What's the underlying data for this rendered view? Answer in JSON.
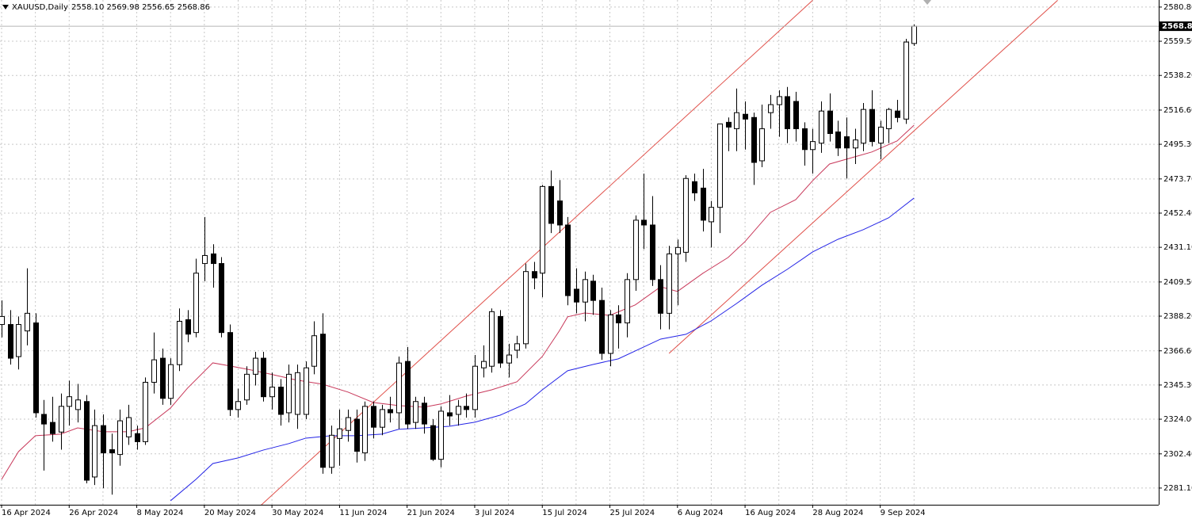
{
  "chart_data": {
    "type": "candlestick",
    "symbol": "XAUUSD,Daily",
    "ohlc_label": "2558.10 2569.98 2556.65 2568.86",
    "categories": [
      "16 Apr 2024",
      null,
      null,
      null,
      null,
      null,
      null,
      null,
      "26 Apr 2024",
      null,
      null,
      null,
      null,
      null,
      null,
      null,
      "8 May 2024",
      null,
      null,
      null,
      null,
      null,
      null,
      null,
      "20 May 2024",
      null,
      null,
      null,
      null,
      null,
      null,
      null,
      "30 May 2024",
      null,
      null,
      null,
      null,
      null,
      null,
      null,
      "11 Jun 2024",
      null,
      null,
      null,
      null,
      null,
      null,
      null,
      "21 Jun 2024",
      null,
      null,
      null,
      null,
      null,
      null,
      null,
      "3 Jul 2024",
      null,
      null,
      null,
      null,
      null,
      null,
      null,
      "15 Jul 2024",
      null,
      null,
      null,
      null,
      null,
      null,
      null,
      "25 Jul 2024",
      null,
      null,
      null,
      null,
      null,
      null,
      null,
      "6 Aug 2024",
      null,
      null,
      null,
      null,
      null,
      null,
      null,
      "16 Aug 2024",
      null,
      null,
      null,
      null,
      null,
      null,
      null,
      "28 Aug 2024",
      null,
      null,
      null,
      null,
      null,
      null,
      null,
      "9 Sep 2024",
      null,
      null,
      null,
      null
    ],
    "open": [
      2383,
      2383,
      2363,
      2379,
      2384,
      2327,
      2322,
      2316,
      2332,
      2330,
      2335,
      2288,
      2320,
      2305,
      2302,
      2313,
      2315,
      2310,
      2347,
      2362,
      2337,
      2358,
      2386,
      2378,
      2421,
      2427,
      2421,
      2378,
      2330,
      2336,
      2352,
      2362,
      2338,
      2344,
      2328,
      2327,
      2327,
      2357,
      2377,
      2294,
      2312,
      2317,
      2324,
      2303,
      2332,
      2319,
      2330,
      2328,
      2360,
      2322,
      2334,
      2320,
      2299,
      2328,
      2327,
      2332,
      2330,
      2356,
      2357,
      2388,
      2359,
      2367,
      2371,
      2416,
      2415,
      2469,
      2460,
      2445,
      2405,
      2397,
      2410,
      2398,
      2365,
      2389,
      2384,
      2411,
      2448,
      2445,
      2411,
      2390,
      2427,
      2428,
      2472,
      2468,
      2447,
      2456,
      2509,
      2505,
      2514,
      2512,
      2485,
      2515,
      2520,
      2525,
      2522,
      2505,
      2492,
      2496,
      2516,
      2503,
      2500,
      2493,
      2496,
      2517,
      2496,
      2505,
      2516,
      2511,
      2558.1
    ],
    "high": [
      2398,
      2392,
      2388,
      2418,
      2390,
      2336,
      2338,
      2340,
      2348,
      2346,
      2339,
      2330,
      2327,
      2315,
      2330,
      2333,
      2320,
      2350,
      2378,
      2368,
      2362,
      2393,
      2392,
      2424,
      2450,
      2433,
      2425,
      2383,
      2343,
      2357,
      2366,
      2366,
      2353,
      2349,
      2358,
      2358,
      2360,
      2385,
      2390,
      2320,
      2330,
      2330,
      2330,
      2335,
      2335,
      2333,
      2338,
      2363,
      2369,
      2338,
      2338,
      2324,
      2332,
      2339,
      2336,
      2340,
      2364,
      2370,
      2393,
      2392,
      2371,
      2376,
      2421,
      2422,
      2470,
      2479,
      2473,
      2450,
      2418,
      2416,
      2414,
      2406,
      2392,
      2395,
      2415,
      2451,
      2477,
      2463,
      2420,
      2432,
      2436,
      2476,
      2477,
      2480,
      2460,
      2508,
      2512,
      2530,
      2522,
      2515,
      2520,
      2526,
      2529,
      2531,
      2528,
      2509,
      2505,
      2522,
      2527,
      2510,
      2512,
      2505,
      2521,
      2529,
      2510,
      2518,
      2523,
      2561,
      2569.98
    ],
    "low": [
      2375,
      2358,
      2355,
      2370,
      2325,
      2292,
      2310,
      2305,
      2320,
      2322,
      2284,
      2283,
      2281,
      2277,
      2295,
      2308,
      2305,
      2308,
      2340,
      2333,
      2333,
      2354,
      2372,
      2375,
      2410,
      2406,
      2375,
      2326,
      2325,
      2333,
      2345,
      2335,
      2330,
      2320,
      2322,
      2318,
      2324,
      2352,
      2290,
      2290,
      2295,
      2310,
      2297,
      2298,
      2312,
      2314,
      2322,
      2318,
      2318,
      2318,
      2315,
      2298,
      2294,
      2320,
      2320,
      2325,
      2325,
      2350,
      2353,
      2356,
      2350,
      2362,
      2368,
      2405,
      2400,
      2440,
      2440,
      2395,
      2390,
      2385,
      2389,
      2361,
      2357,
      2368,
      2375,
      2404,
      2430,
      2407,
      2380,
      2380,
      2395,
      2422,
      2460,
      2441,
      2431,
      2440,
      2491,
      2491,
      2492,
      2470,
      2481,
      2505,
      2500,
      2496,
      2497,
      2482,
      2477,
      2490,
      2497,
      2488,
      2474,
      2483,
      2491,
      2494,
      2486,
      2496,
      2509,
      2508,
      2556.65
    ],
    "close": [
      2388,
      2362,
      2383,
      2390,
      2328,
      2321,
      2315,
      2332,
      2338,
      2336,
      2286,
      2320,
      2303,
      2303,
      2323,
      2325,
      2310,
      2347,
      2361,
      2337,
      2358,
      2385,
      2377,
      2415,
      2426,
      2421,
      2378,
      2330,
      2335,
      2352,
      2362,
      2338,
      2344,
      2327,
      2352,
      2353,
      2356,
      2376,
      2294,
      2314,
      2318,
      2325,
      2304,
      2332,
      2319,
      2330,
      2328,
      2359,
      2321,
      2335,
      2321,
      2299,
      2329,
      2326,
      2332,
      2330,
      2357,
      2360,
      2391,
      2359,
      2364,
      2371,
      2416,
      2412,
      2469,
      2446,
      2445,
      2401,
      2397,
      2411,
      2398,
      2365,
      2389,
      2384,
      2411,
      2448,
      2445,
      2411,
      2390,
      2427,
      2431,
      2474,
      2465,
      2448,
      2456,
      2508,
      2506,
      2515,
      2511,
      2484,
      2505,
      2520,
      2525,
      2505,
      2505,
      2492,
      2497,
      2516,
      2502,
      2493,
      2493,
      2498,
      2517,
      2497,
      2506,
      2517,
      2512,
      2559,
      2568.86
    ],
    "up_color": "#ffffff",
    "down_color": "#000000",
    "lines": [
      {
        "color": "#c8385a",
        "x": [
          0,
          2,
          4,
          7,
          9,
          12,
          15,
          17,
          20,
          22,
          25,
          27,
          30,
          33,
          35,
          38,
          41,
          44,
          47,
          50,
          52,
          55,
          58,
          61,
          64,
          66,
          67,
          69,
          72,
          75,
          78,
          80,
          83,
          86,
          88,
          91,
          94,
          96,
          98,
          101,
          103,
          106,
          108
        ],
        "values": [
          2286.5,
          2303.8,
          2313.7,
          2314.7,
          2318.6,
          2316.2,
          2316.2,
          2318.6,
          2331.0,
          2343.3,
          2359.1,
          2357.2,
          2354.2,
          2350.7,
          2348.3,
          2345.8,
          2340.9,
          2334.4,
          2332.5,
          2331.5,
          2333.5,
          2338.4,
          2342.3,
          2347.3,
          2363.1,
          2378.9,
          2387.8,
          2390.2,
          2388.7,
          2395.2,
          2406.5,
          2403.6,
          2414.9,
          2424.8,
          2434.7,
          2452.9,
          2460.8,
          2472.6,
          2483.0,
          2487.5,
          2490.5,
          2497.4,
          2507.2
        ]
      },
      {
        "color": "#2424e6",
        "x": [
          20,
          23,
          25,
          28,
          31,
          34,
          36,
          39,
          42,
          45,
          47,
          50,
          53,
          56,
          59,
          62,
          64,
          67,
          70,
          73,
          76,
          78,
          81,
          84,
          87,
          90,
          93,
          96,
          99,
          102,
          105,
          108
        ],
        "values": [
          2273.2,
          2286.5,
          2296.4,
          2299.9,
          2304.8,
          2308.8,
          2312.2,
          2313.7,
          2313.7,
          2314.7,
          2317.7,
          2318.6,
          2319.6,
          2322.1,
          2326.5,
          2333.5,
          2342.3,
          2354.2,
          2358.1,
          2361.6,
          2369.0,
          2373.9,
          2376.9,
          2385.3,
          2396.1,
          2407.5,
          2417.4,
          2428.2,
          2436.1,
          2442.1,
          2449.5,
          2461.8
        ]
      }
    ],
    "trendlines": [
      {
        "color": "#e0504a",
        "x": [
          30,
          96
        ],
        "values": [
          2267,
          2585
        ]
      },
      {
        "color": "#e0504a",
        "x": [
          79,
          125
        ],
        "values": [
          2365,
          2585
        ]
      }
    ],
    "last_price": 2568.86,
    "ylim": [
      2270.7,
      2585.2
    ],
    "yticks": [
      {
        "value": 2580.8,
        "label": "2580.80"
      },
      {
        "value": 2559.5,
        "label": "2559.50"
      },
      {
        "value": 2538.2,
        "label": "2538.20"
      },
      {
        "value": 2516.6,
        "label": "2516.60"
      },
      {
        "value": 2495.3,
        "label": "2495.30"
      },
      {
        "value": 2473.7,
        "label": "2473.70"
      },
      {
        "value": 2452.4,
        "label": "2452.40"
      },
      {
        "value": 2431.1,
        "label": "2431.10"
      },
      {
        "value": 2409.5,
        "label": "2409.50"
      },
      {
        "value": 2388.2,
        "label": "2388.20"
      },
      {
        "value": 2366.6,
        "label": "2366.60"
      },
      {
        "value": 2345.3,
        "label": "2345.30"
      },
      {
        "value": 2324.0,
        "label": "2324.00"
      },
      {
        "value": 2302.4,
        "label": "2302.40"
      },
      {
        "value": 2281.1,
        "label": "2281.10"
      }
    ],
    "grid": true
  }
}
